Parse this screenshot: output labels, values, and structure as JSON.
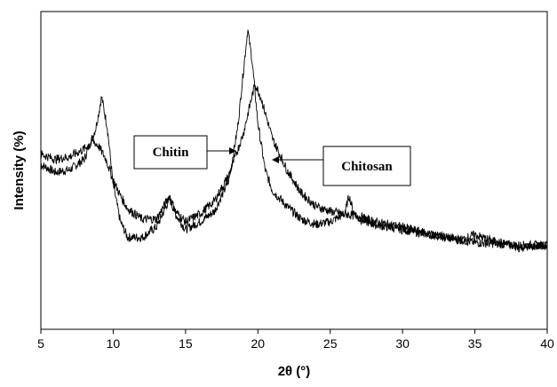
{
  "chart_data": {
    "type": "line",
    "title": "",
    "xlabel": "2θ (°)",
    "ylabel": "Intensity (%)",
    "xlim": [
      5,
      40
    ],
    "xticks": [
      5,
      10,
      15,
      20,
      25,
      30,
      35,
      40
    ],
    "yticks_shown": false,
    "grid": false,
    "legend": "none",
    "series": [
      {
        "name": "Chitin",
        "x": [
          5,
          6,
          7,
          8,
          8.8,
          9.2,
          9.6,
          10,
          10.5,
          11,
          12,
          13,
          13.5,
          13.9,
          14.3,
          15,
          16,
          17,
          18,
          18.6,
          19,
          19.3,
          19.6,
          20,
          20.5,
          21,
          22,
          23,
          24,
          25,
          26,
          26.3,
          26.6,
          27,
          28,
          30,
          32,
          35,
          38,
          40
        ],
        "y": [
          0.48,
          0.45,
          0.46,
          0.5,
          0.62,
          0.74,
          0.62,
          0.4,
          0.26,
          0.2,
          0.2,
          0.24,
          0.3,
          0.35,
          0.29,
          0.23,
          0.26,
          0.3,
          0.42,
          0.62,
          0.84,
          1.0,
          0.88,
          0.64,
          0.46,
          0.38,
          0.32,
          0.27,
          0.25,
          0.26,
          0.29,
          0.36,
          0.3,
          0.27,
          0.25,
          0.23,
          0.21,
          0.18,
          0.17,
          0.17
        ]
      },
      {
        "name": "Chitosan",
        "x": [
          5,
          6,
          7,
          8,
          8.6,
          9,
          9.5,
          10,
          10.5,
          11,
          12,
          13,
          13.5,
          13.9,
          14.3,
          15,
          16,
          17,
          18,
          19,
          19.5,
          19.8,
          20.2,
          20.6,
          21,
          22,
          23,
          24,
          25,
          26,
          27,
          28,
          30,
          32,
          34,
          35,
          36,
          38,
          40
        ],
        "y": [
          0.52,
          0.5,
          0.51,
          0.54,
          0.57,
          0.55,
          0.5,
          0.42,
          0.36,
          0.31,
          0.27,
          0.27,
          0.32,
          0.36,
          0.3,
          0.26,
          0.29,
          0.34,
          0.44,
          0.6,
          0.72,
          0.79,
          0.74,
          0.66,
          0.58,
          0.46,
          0.37,
          0.32,
          0.3,
          0.29,
          0.28,
          0.26,
          0.24,
          0.21,
          0.19,
          0.21,
          0.19,
          0.16,
          0.17
        ]
      }
    ],
    "annotations": [
      {
        "text": "Chitin",
        "points_to_series": "Chitin"
      },
      {
        "text": "Chitosan",
        "points_to_series": "Chitosan"
      }
    ],
    "line_color": "#000000"
  }
}
